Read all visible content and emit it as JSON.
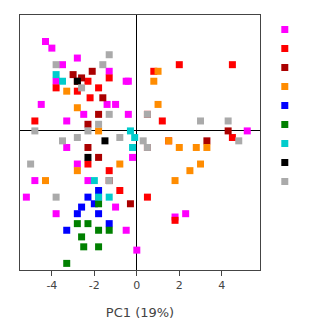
{
  "chart_data": {
    "type": "scatter",
    "xlabel": "PC1 (19%)",
    "xlim": [
      -5.5,
      5.8
    ],
    "ylim": [
      -4.2,
      3.5
    ],
    "xticks": [
      -4,
      -2,
      0,
      2,
      4
    ],
    "yticks": [],
    "tick_labels": "x",
    "grid": false,
    "legend": "upper right",
    "marker": "square",
    "series": [
      {
        "color": "#FF00FF",
        "x": [
          -4.3,
          -4.0,
          -3.5,
          -2.8,
          -3.8,
          -4.5,
          -3.3,
          -2.5,
          -1.4,
          -1.0,
          -0.4,
          -0.4,
          -1.3,
          -0.5,
          -3.3,
          -2.8,
          -2.3,
          -1.8,
          -1.0,
          -0.5,
          1.8,
          2.3,
          5.2,
          -4.8,
          -5.2,
          -3.8,
          0.0,
          -0.2
        ],
        "y": [
          2.7,
          2.5,
          2.0,
          2.2,
          1.5,
          0.8,
          0.3,
          0.5,
          0.8,
          0.8,
          0.5,
          1.5,
          1.8,
          1.5,
          -0.5,
          -1.0,
          -1.5,
          -2.0,
          -2.3,
          -3.0,
          -2.6,
          -2.5,
          0.0,
          -1.5,
          -2.0,
          -2.5,
          -3.6,
          -0.8
        ]
      },
      {
        "color": "#FF0000",
        "x": [
          -4.8,
          -3.8,
          -2.8,
          -2.3,
          -1.8,
          -1.3,
          -2.2,
          0.8,
          2.0,
          4.5,
          0.5,
          1.2,
          0.5,
          1.5,
          -2.3,
          -1.3,
          -0.8,
          0.5,
          1.8,
          4.5,
          -2.8
        ],
        "y": [
          0.3,
          1.3,
          1.5,
          1.5,
          1.3,
          1.6,
          1.0,
          1.8,
          2.0,
          2.0,
          0.5,
          0.3,
          -0.5,
          -0.3,
          -1.0,
          -1.2,
          -1.8,
          -2.0,
          -2.7,
          -0.2,
          1.2
        ]
      },
      {
        "color": "#AA0000",
        "x": [
          -3.0,
          -2.6,
          -2.1,
          -1.6,
          -1.8,
          -2.3,
          -2.3,
          -1.8,
          -1.3,
          -0.3,
          4.3,
          3.3
        ],
        "y": [
          1.7,
          1.6,
          1.8,
          1.0,
          0.5,
          0.2,
          -0.5,
          -0.8,
          -1.5,
          -2.2,
          0.0,
          -0.3
        ]
      },
      {
        "color": "#FF8C00",
        "x": [
          -3.3,
          -2.8,
          -1.8,
          0.8,
          1.0,
          1.0,
          1.5,
          2.0,
          2.8,
          3.3,
          1.8,
          2.5,
          -2.8,
          -4.3,
          -0.8,
          3.0
        ],
        "y": [
          1.2,
          0.7,
          0.0,
          1.5,
          1.8,
          0.8,
          -0.3,
          -0.5,
          -0.5,
          -0.5,
          -1.5,
          -1.2,
          -1.2,
          -1.5,
          -1.0,
          -1.0
        ]
      },
      {
        "color": "#0000FF",
        "x": [
          -1.8,
          -2.3,
          -2.6,
          -1.8,
          -1.3,
          -2.8,
          -3.3,
          -2.0
        ],
        "y": [
          -1.8,
          -2.0,
          -2.3,
          -2.5,
          -2.8,
          -2.5,
          -3.0,
          -2.2
        ]
      },
      {
        "color": "#008000",
        "x": [
          -1.8,
          -2.3,
          -2.8,
          -2.6,
          -1.8,
          -1.3,
          -3.3,
          -1.8,
          -2.5
        ],
        "y": [
          -2.2,
          -2.8,
          -2.8,
          -3.2,
          -3.0,
          -3.0,
          -4.0,
          -3.5,
          -3.5
        ]
      },
      {
        "color": "#00CCCC",
        "x": [
          -3.8,
          -3.5,
          -0.3,
          -0.1,
          -0.2,
          -1.3,
          -1.8,
          -2.0
        ],
        "y": [
          1.7,
          1.5,
          0.0,
          -0.2,
          -0.5,
          -2.0,
          -2.0,
          -1.5
        ]
      },
      {
        "color": "#000000",
        "x": [
          -2.8,
          -2.3,
          -1.5
        ],
        "y": [
          1.5,
          -0.8,
          -0.3
        ]
      },
      {
        "color": "#AAAAAA",
        "x": [
          -3.8,
          -1.6,
          -1.3,
          -2.6,
          -1.3,
          -1.8,
          -2.3,
          -2.8,
          -0.8,
          0.5,
          0.5,
          3.0,
          4.3,
          -4.8,
          -5.0,
          -3.8,
          -1.3,
          4.8,
          -3.5,
          0.3
        ],
        "y": [
          2.0,
          2.0,
          2.3,
          1.3,
          0.5,
          0.2,
          0.0,
          -0.2,
          -0.2,
          0.5,
          -0.5,
          0.3,
          0.3,
          0.0,
          -1.0,
          -2.0,
          -1.5,
          -0.3,
          -0.3,
          -0.3
        ]
      }
    ]
  }
}
